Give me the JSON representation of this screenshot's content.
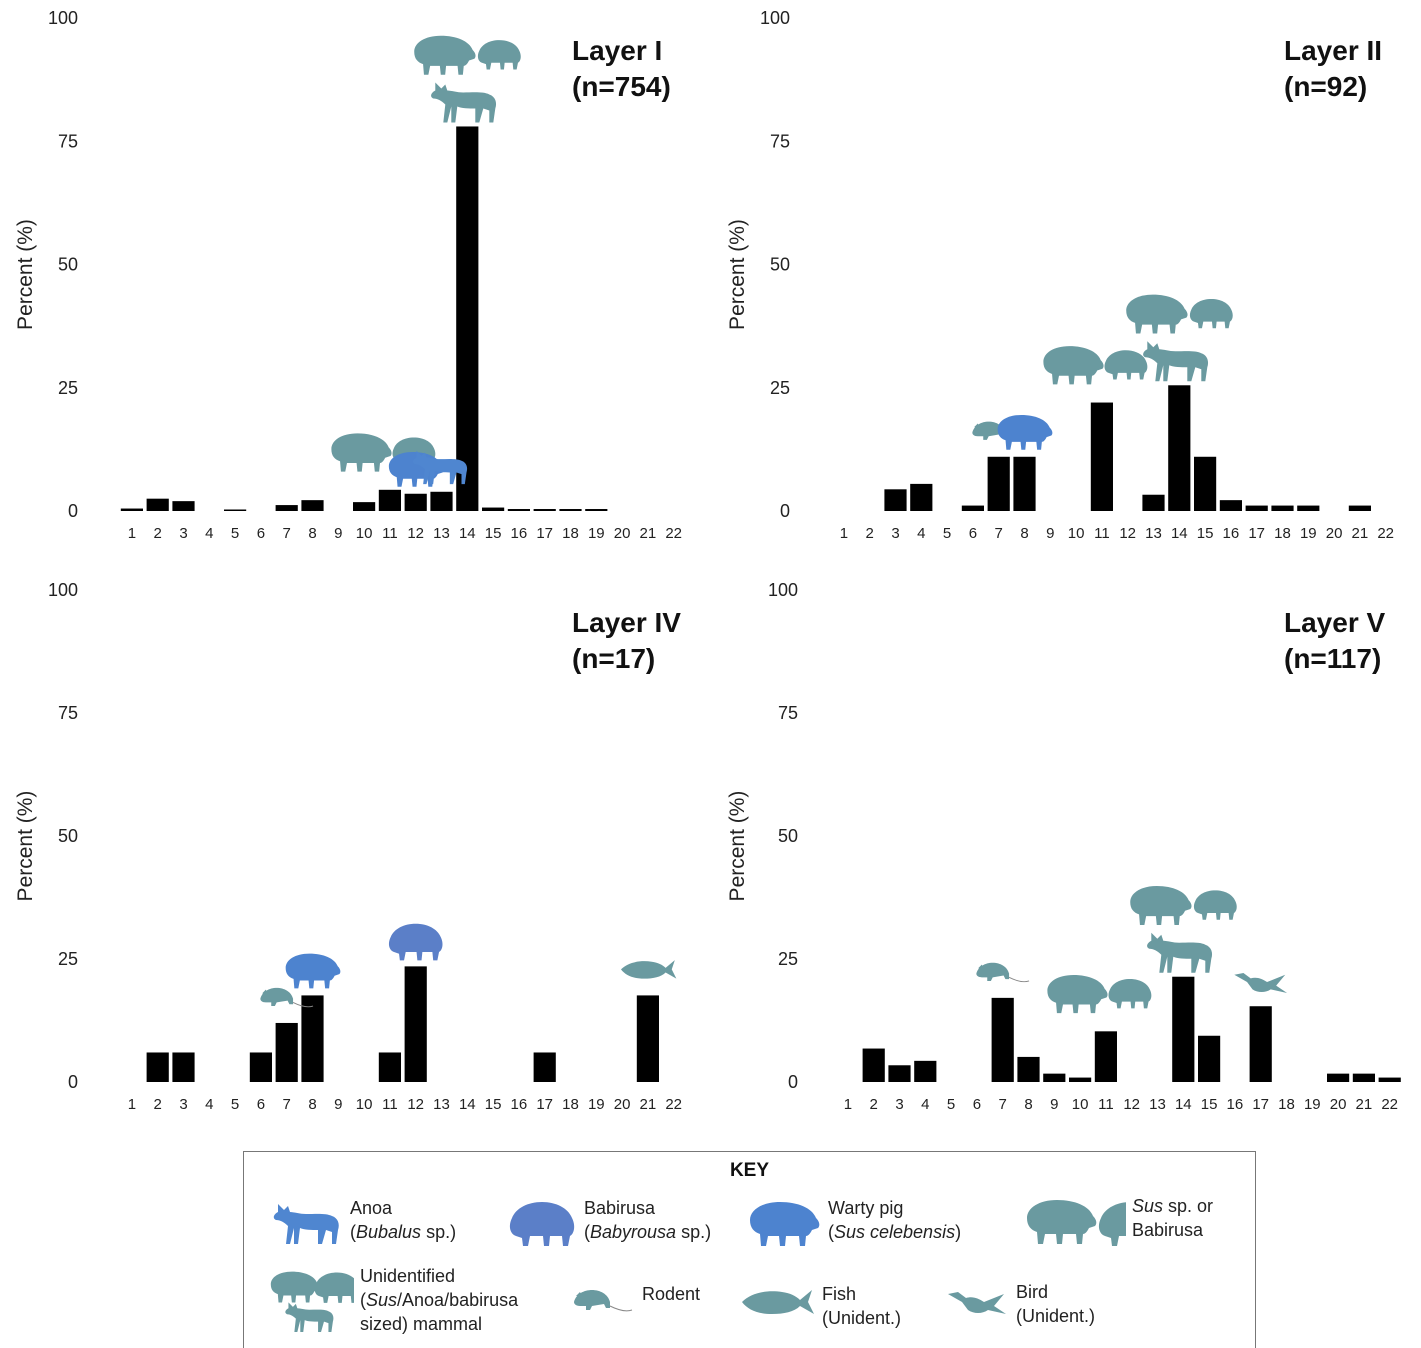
{
  "colors": {
    "bar": "#000000",
    "anoa": "#4f86d0",
    "babirusa": "#5b7fc8",
    "warty_pig": "#4d83cf",
    "sus_or_babirusa": "#6a9aa0",
    "unidentified_mammal": "#6a9aa0",
    "rodent": "#6a9aa0",
    "fish": "#6a9aa0",
    "bird": "#6a9aa0"
  },
  "y_axis_title": "Percent (%)",
  "chart_data": [
    {
      "type": "bar",
      "title": "Layer I",
      "subtitle": "(n=754)",
      "categories": [
        "1",
        "2",
        "3",
        "4",
        "5",
        "6",
        "7",
        "8",
        "9",
        "10",
        "11",
        "12",
        "13",
        "14",
        "15",
        "16",
        "17",
        "18",
        "19",
        "20",
        "21",
        "22"
      ],
      "values": [
        0.5,
        2.5,
        2,
        0,
        0.2,
        0,
        1.2,
        2.2,
        0,
        1.8,
        4.3,
        3.5,
        3.9,
        78,
        0.7,
        0.4,
        0.4,
        0.4,
        0.4,
        0,
        0,
        0
      ],
      "ylabel": "Percent (%)",
      "yticks": [
        0,
        25,
        50,
        75,
        100
      ],
      "ylim": [
        0,
        100
      ],
      "annotations": [
        {
          "category": "11",
          "icon": "sus-or-babirusa"
        },
        {
          "category": "12",
          "icon": "warty-pig"
        },
        {
          "category": "13",
          "icon": "anoa"
        },
        {
          "category": "14",
          "icon": "unidentified-mammal"
        }
      ]
    },
    {
      "type": "bar",
      "title": "Layer II",
      "subtitle": "(n=92)",
      "categories": [
        "1",
        "2",
        "3",
        "4",
        "5",
        "6",
        "7",
        "8",
        "9",
        "10",
        "11",
        "12",
        "13",
        "14",
        "15",
        "16",
        "17",
        "18",
        "19",
        "20",
        "21",
        "22"
      ],
      "values": [
        0,
        0,
        4.4,
        5.5,
        0,
        1.1,
        11,
        11,
        0,
        0,
        22,
        0,
        3.3,
        25.5,
        11,
        2.2,
        1.1,
        1.1,
        1.1,
        0,
        1.1,
        0
      ],
      "ylabel": "Percent (%)",
      "yticks": [
        0,
        25,
        50,
        75,
        100
      ],
      "ylim": [
        0,
        100
      ],
      "annotations": [
        {
          "category": "7",
          "icon": "rodent"
        },
        {
          "category": "8",
          "icon": "warty-pig"
        },
        {
          "category": "11",
          "icon": "sus-or-babirusa"
        },
        {
          "category": "14",
          "icon": "unidentified-mammal"
        }
      ]
    },
    {
      "type": "bar",
      "title": "Layer IV",
      "subtitle": "(n=17)",
      "categories": [
        "1",
        "2",
        "3",
        "4",
        "5",
        "6",
        "7",
        "8",
        "9",
        "10",
        "11",
        "12",
        "13",
        "14",
        "15",
        "16",
        "17",
        "18",
        "19",
        "20",
        "21",
        "22"
      ],
      "values": [
        0,
        6,
        6,
        0,
        0,
        6,
        12,
        17.6,
        0,
        0,
        6,
        23.5,
        0,
        0,
        0,
        0,
        6,
        0,
        0,
        0,
        17.6,
        0
      ],
      "ylabel": "Percent (%)",
      "yticks": [
        0,
        25,
        50,
        75,
        100
      ],
      "ylim": [
        0,
        100
      ],
      "annotations": [
        {
          "category": "7",
          "icon": "rodent"
        },
        {
          "category": "8",
          "icon": "warty-pig"
        },
        {
          "category": "12",
          "icon": "babirusa"
        },
        {
          "category": "21",
          "icon": "fish"
        }
      ]
    },
    {
      "type": "bar",
      "title": "Layer V",
      "subtitle": "(n=117)",
      "categories": [
        "1",
        "2",
        "3",
        "4",
        "5",
        "6",
        "7",
        "8",
        "9",
        "10",
        "11",
        "12",
        "13",
        "14",
        "15",
        "16",
        "17",
        "18",
        "19",
        "20",
        "21",
        "22"
      ],
      "values": [
        0,
        6.8,
        3.4,
        4.3,
        0,
        0,
        17.1,
        5.1,
        1.7,
        0.9,
        10.3,
        0,
        0,
        21.4,
        9.4,
        0,
        15.4,
        0,
        0,
        1.7,
        1.7,
        0.9
      ],
      "ylabel": "Percent (%)",
      "yticks": [
        0,
        25,
        50,
        75,
        100
      ],
      "ylim": [
        0,
        100
      ],
      "annotations": [
        {
          "category": "7",
          "icon": "rodent"
        },
        {
          "category": "11",
          "icon": "sus-or-babirusa"
        },
        {
          "category": "14",
          "icon": "unidentified-mammal"
        },
        {
          "category": "17",
          "icon": "bird"
        }
      ]
    }
  ],
  "key": {
    "title": "KEY",
    "items": [
      {
        "icon": "anoa",
        "line1": "Anoa",
        "line2_pre": "(",
        "line2_italic": "Bubalus",
        "line2_post": " sp.)"
      },
      {
        "icon": "babirusa",
        "line1": "Babirusa",
        "line2_pre": "(",
        "line2_italic": "Babyrousa",
        "line2_post": " sp.)"
      },
      {
        "icon": "warty-pig",
        "line1": "Warty pig",
        "line2_pre": "(",
        "line2_italic": "Sus celebensis",
        "line2_post": ")"
      },
      {
        "icon": "sus-or-babirusa",
        "line1_italic": "Sus",
        "line1_post": " sp. or",
        "line2": "Babirusa"
      },
      {
        "icon": "unidentified-mammal",
        "line1": "Unidentified",
        "line2_pre": "(",
        "line2_italic": "Sus",
        "line2_post": "/Anoa/babirusa",
        "line3": "sized) mammal"
      },
      {
        "icon": "rodent",
        "line1": "Rodent"
      },
      {
        "icon": "fish",
        "line1": "Fish",
        "line2": "(Unident.)"
      },
      {
        "icon": "bird",
        "line1": "Bird",
        "line2": "(Unident.)"
      }
    ]
  }
}
